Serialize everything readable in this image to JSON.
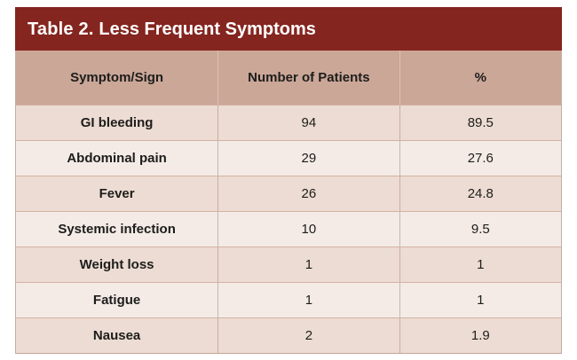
{
  "title": {
    "prefix": "Table 2. ",
    "rest": "Less Frequent Symptoms"
  },
  "colors": {
    "title_band_bg": "#84251f",
    "title_text": "#ffffff",
    "column_header_bg": "#cba798",
    "row_odd_bg": "#ecdcd3",
    "row_even_bg": "#f4ebe7",
    "body_text": "#1d1d1b",
    "divider_tan": "#d3b1a1",
    "divider_gray": "#bcbab8"
  },
  "table": {
    "columns": {
      "symptom": "Symptom/Sign",
      "patients": "Number of Patients",
      "percent": "%"
    },
    "rows": [
      {
        "symptom": "GI bleeding",
        "patients": "94",
        "percent": "89.5"
      },
      {
        "symptom": "Abdominal pain",
        "patients": "29",
        "percent": "27.6"
      },
      {
        "symptom": "Fever",
        "patients": "26",
        "percent": "24.8"
      },
      {
        "symptom": "Systemic infection",
        "patients": "10",
        "percent": "9.5"
      },
      {
        "symptom": "Weight loss",
        "patients": "1",
        "percent": "1"
      },
      {
        "symptom": "Fatigue",
        "patients": "1",
        "percent": "1"
      },
      {
        "symptom": "Nausea",
        "patients": "2",
        "percent": "1.9"
      }
    ]
  },
  "chart_data": {
    "type": "table",
    "title": "Table 2. Less Frequent Symptoms",
    "columns": [
      "Symptom/Sign",
      "Number of Patients",
      "%"
    ],
    "rows": [
      [
        "GI bleeding",
        94,
        89.5
      ],
      [
        "Abdominal pain",
        29,
        27.6
      ],
      [
        "Fever",
        26,
        24.8
      ],
      [
        "Systemic infection",
        10,
        9.5
      ],
      [
        "Weight loss",
        1,
        1
      ],
      [
        "Fatigue",
        1,
        1
      ],
      [
        "Nausea",
        2,
        1.9
      ]
    ]
  }
}
